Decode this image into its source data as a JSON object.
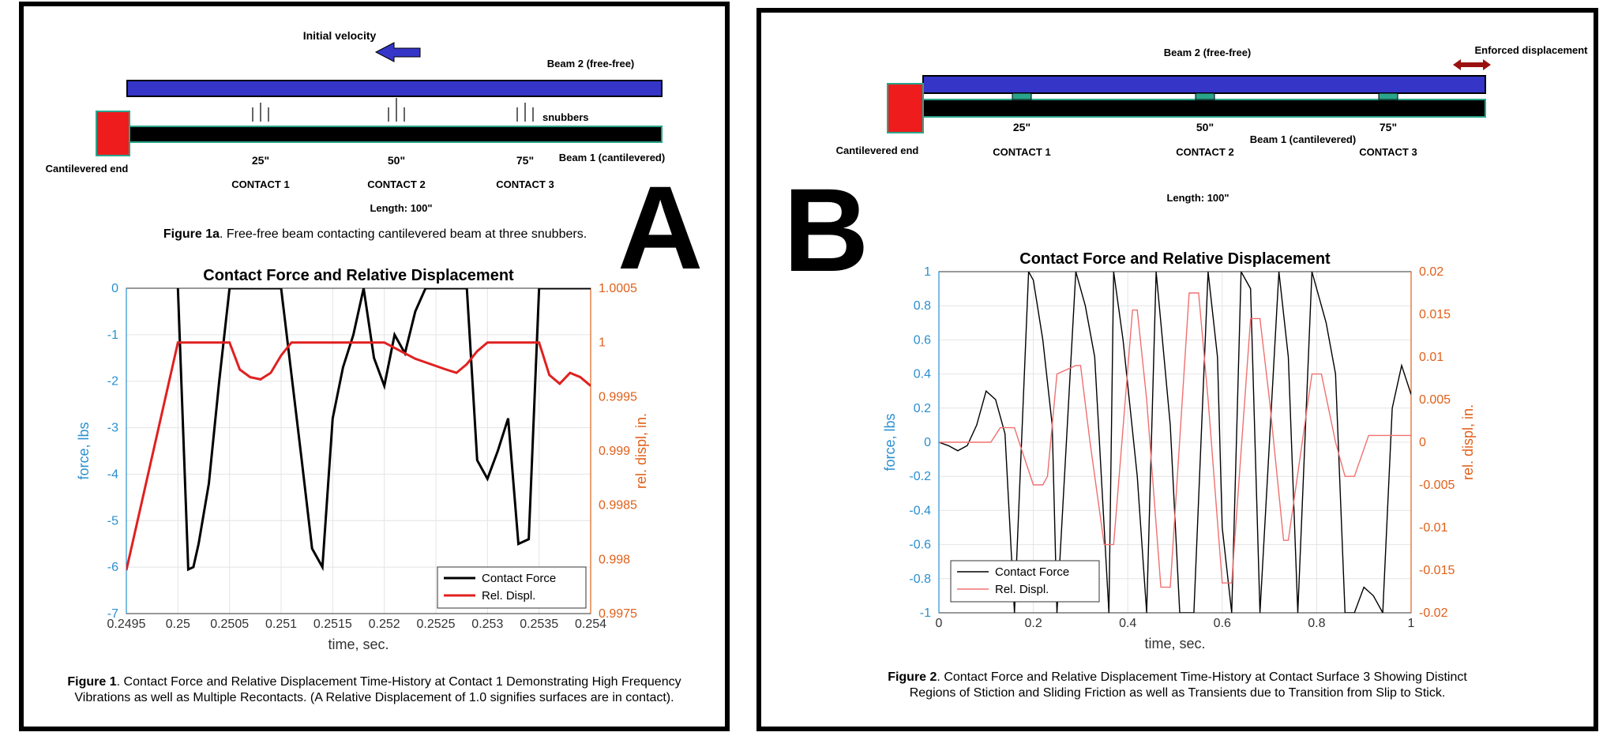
{
  "panelA": {
    "letter": "A",
    "diagram": {
      "initial_velocity": "Initial velocity",
      "beam2": "Beam 2 (free-free)",
      "snubbers": "snubbers",
      "cantilevered_end": "Cantilevered end",
      "beam1": "Beam 1 (cantilevered)",
      "positions": [
        "25\"",
        "50\"",
        "75\""
      ],
      "contacts": [
        "CONTACT 1",
        "CONTACT 2",
        "CONTACT 3"
      ],
      "length": "Length: 100\"",
      "fig_label": "Figure 1a",
      "fig_text": ". Free-free beam contacting cantilevered beam at three snubbers."
    },
    "caption_label": "Figure 1",
    "caption_line1": ". Contact Force and Relative Displacement Time-History at Contact 1 Demonstrating High Frequency",
    "caption_line2": "Vibrations as well as Multiple Recontacts. (A Relative Displacement of 1.0 signifies surfaces are in contact).",
    "colors": {
      "beam2": "#3535c8",
      "beam1": "#000000",
      "cant": "#ee1c1c",
      "teal": "#2aa58c",
      "force": "#000000",
      "displ": "#e02020"
    }
  },
  "panelB": {
    "letter": "B",
    "diagram": {
      "beam2": "Beam 2 (free-free)",
      "enforced": "Enforced displacement",
      "cantilevered_end": "Cantilevered end",
      "beam1": "Beam 1 (cantilevered)",
      "positions": [
        "25\"",
        "50\"",
        "75\""
      ],
      "contacts": [
        "CONTACT 1",
        "CONTACT 2",
        "CONTACT 3"
      ],
      "length": "Length: 100\""
    },
    "caption_label": "Figure 2",
    "caption_line1": ". Contact Force and Relative Displacement Time-History at Contact Surface 3 Showing Distinct",
    "caption_line2": "Regions of Stiction and Sliding Friction as well as Transients due to Transition from Slip to Stick.",
    "colors": {
      "force": "#000000",
      "displ": "#f07070"
    }
  },
  "chart_data": [
    {
      "type": "line",
      "title": "Contact Force and Relative Displacement",
      "xlabel": "time, sec.",
      "ylabel": "force, lbs",
      "y2label": "rel. displ, in.",
      "xlim": [
        0.2495,
        0.254
      ],
      "ylim": [
        -7,
        0
      ],
      "y2lim": [
        0.9975,
        1.0005
      ],
      "xticks": [
        "0.2495",
        "0.25",
        "0.2505",
        "0.251",
        "0.2515",
        "0.252",
        "0.2525",
        "0.253",
        "0.2535",
        "0.254"
      ],
      "yticks": [
        "0",
        "-1",
        "-2",
        "-3",
        "-4",
        "-5",
        "-6",
        "-7"
      ],
      "y2ticks": [
        "1.0005",
        "1",
        "0.9995",
        "0.999",
        "0.9985",
        "0.998",
        "0.9975"
      ],
      "grid": true,
      "legend_position": "bottom-right",
      "series": [
        {
          "name": "Contact Force",
          "axis": "left",
          "x": [
            0.25,
            0.2501,
            0.25015,
            0.2502,
            0.2503,
            0.2504,
            0.2505,
            0.251,
            0.2512,
            0.2513,
            0.2514,
            0.2515,
            0.2516,
            0.2517,
            0.2518,
            0.2519,
            0.252,
            0.2521,
            0.2522,
            0.2523,
            0.2524,
            0.2525,
            0.2528,
            0.2529,
            0.253,
            0.2531,
            0.2532,
            0.2533,
            0.2534,
            0.2535,
            0.254
          ],
          "y": [
            0,
            -6.05,
            -6.0,
            -5.5,
            -4.2,
            -2.0,
            0,
            0,
            -3.7,
            -5.6,
            -6.0,
            -2.8,
            -1.7,
            -1.0,
            0,
            -1.5,
            -2.1,
            -1.0,
            -1.4,
            -0.5,
            0,
            0,
            0,
            -3.7,
            -4.1,
            -3.5,
            -2.8,
            -5.5,
            -5.4,
            0,
            0
          ]
        },
        {
          "name": "Rel. Displ.",
          "axis": "right",
          "x": [
            0.2495,
            0.25,
            0.2505,
            0.2506,
            0.2507,
            0.2508,
            0.2509,
            0.251,
            0.2511,
            0.2515,
            0.252,
            0.2523,
            0.2526,
            0.2527,
            0.2528,
            0.2529,
            0.253,
            0.2531,
            0.2535,
            0.2536,
            0.2537,
            0.2538,
            0.2539,
            0.254
          ],
          "y": [
            0.9979,
            1.0,
            1.0,
            0.99975,
            0.99968,
            0.99966,
            0.99972,
            0.99988,
            1.0,
            1.0,
            1.0,
            0.99985,
            0.99975,
            0.99972,
            0.9998,
            0.99992,
            1.0,
            1.0,
            1.0,
            0.9997,
            0.99962,
            0.99972,
            0.99968,
            0.9996
          ]
        }
      ]
    },
    {
      "type": "line",
      "title": "Contact Force and Relative Displacement",
      "xlabel": "time, sec.",
      "ylabel": "force, lbs",
      "y2label": "rel. displ, in.",
      "xlim": [
        0,
        1
      ],
      "ylim": [
        -1,
        1
      ],
      "y2lim": [
        -0.02,
        0.02
      ],
      "xticks": [
        "0",
        "0.2",
        "0.4",
        "0.6",
        "0.8",
        "1"
      ],
      "yticks": [
        "1",
        "0.8",
        "0.6",
        "0.4",
        "0.2",
        "0",
        "-0.2",
        "-0.4",
        "-0.6",
        "-0.8",
        "-1"
      ],
      "y2ticks": [
        "0.02",
        "0.015",
        "0.01",
        "0.005",
        "0",
        "-0.005",
        "-0.01",
        "-0.015",
        "-0.02"
      ],
      "grid": true,
      "legend_position": "bottom-left",
      "series": [
        {
          "name": "Contact Force",
          "axis": "left",
          "x": [
            0,
            0.02,
            0.04,
            0.06,
            0.08,
            0.1,
            0.12,
            0.14,
            0.16,
            0.19,
            0.2,
            0.22,
            0.24,
            0.25,
            0.29,
            0.31,
            0.33,
            0.35,
            0.36,
            0.37,
            0.39,
            0.42,
            0.44,
            0.46,
            0.47,
            0.49,
            0.51,
            0.54,
            0.57,
            0.59,
            0.6,
            0.62,
            0.64,
            0.66,
            0.68,
            0.72,
            0.74,
            0.76,
            0.79,
            0.82,
            0.84,
            0.86,
            0.87,
            0.88,
            0.9,
            0.92,
            0.94,
            0.96,
            0.98,
            1.0
          ],
          "y": [
            0,
            -0.02,
            -0.05,
            -0.02,
            0.1,
            0.3,
            0.25,
            0.05,
            -1,
            1,
            0.95,
            0.6,
            0.1,
            -1,
            1,
            0.8,
            0.5,
            -0.5,
            -1,
            1,
            0.6,
            -0.2,
            -1,
            1,
            0.7,
            0.1,
            -1,
            -1,
            1,
            0.5,
            -0.5,
            -1,
            1,
            0.9,
            -1,
            1,
            0.5,
            -1,
            1,
            0.7,
            0.4,
            -1,
            -1,
            -1,
            -0.85,
            -0.9,
            -1,
            0.2,
            0.45,
            0.28
          ]
        },
        {
          "name": "Rel. Displ.",
          "axis": "right",
          "x": [
            0,
            0.11,
            0.13,
            0.16,
            0.17,
            0.2,
            0.22,
            0.23,
            0.25,
            0.29,
            0.3,
            0.32,
            0.35,
            0.37,
            0.41,
            0.42,
            0.44,
            0.47,
            0.49,
            0.53,
            0.55,
            0.57,
            0.6,
            0.62,
            0.66,
            0.68,
            0.7,
            0.73,
            0.74,
            0.79,
            0.81,
            0.84,
            0.86,
            0.88,
            0.91,
            0.93,
            1.0
          ],
          "y": [
            0,
            0,
            0.0017,
            0.0017,
            0,
            -0.005,
            -0.005,
            -0.004,
            0.008,
            0.009,
            0.009,
            0,
            -0.012,
            -0.012,
            0.0155,
            0.0155,
            0.005,
            -0.017,
            -0.017,
            0.0175,
            0.0175,
            0.005,
            -0.0165,
            -0.0165,
            0.0145,
            0.0145,
            0.005,
            -0.0115,
            -0.0115,
            0.008,
            0.008,
            0,
            -0.004,
            -0.004,
            0.0008,
            0.0008,
            0.0008
          ]
        }
      ]
    }
  ]
}
